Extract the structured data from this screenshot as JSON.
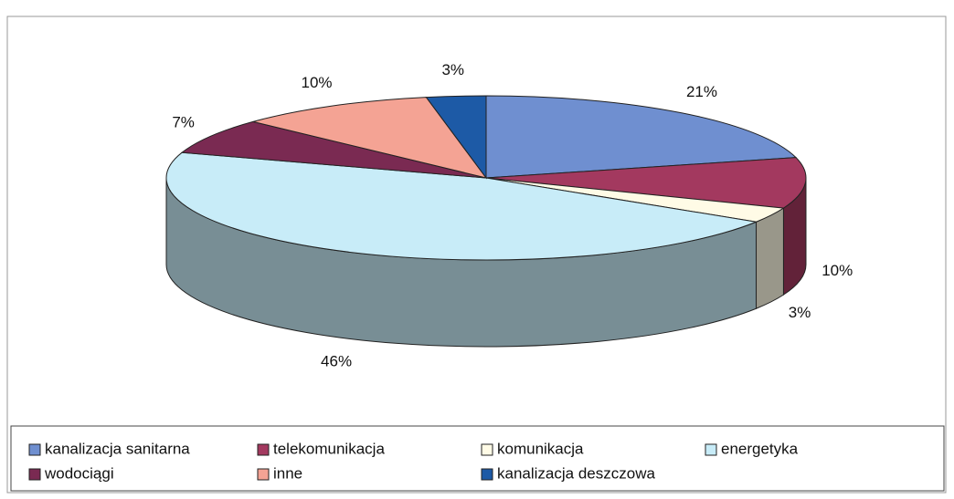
{
  "chart_data": {
    "type": "pie3d",
    "categories": [
      "kanalizacja sanitarna",
      "telekomunikacja",
      "komunikacja",
      "energetyka",
      "wodociągi",
      "inne",
      "kanalizacja deszczowa"
    ],
    "values": [
      21,
      10,
      3,
      46,
      7,
      10,
      3
    ],
    "value_labels": [
      "21%",
      "10%",
      "3%",
      "46%",
      "7%",
      "10%",
      "3%"
    ],
    "colors": [
      "#6f8fd0",
      "#a3395f",
      "#fffbe6",
      "#c8ecf8",
      "#7a2a52",
      "#f4a394",
      "#1d5aa6"
    ],
    "legend": "bottom"
  }
}
